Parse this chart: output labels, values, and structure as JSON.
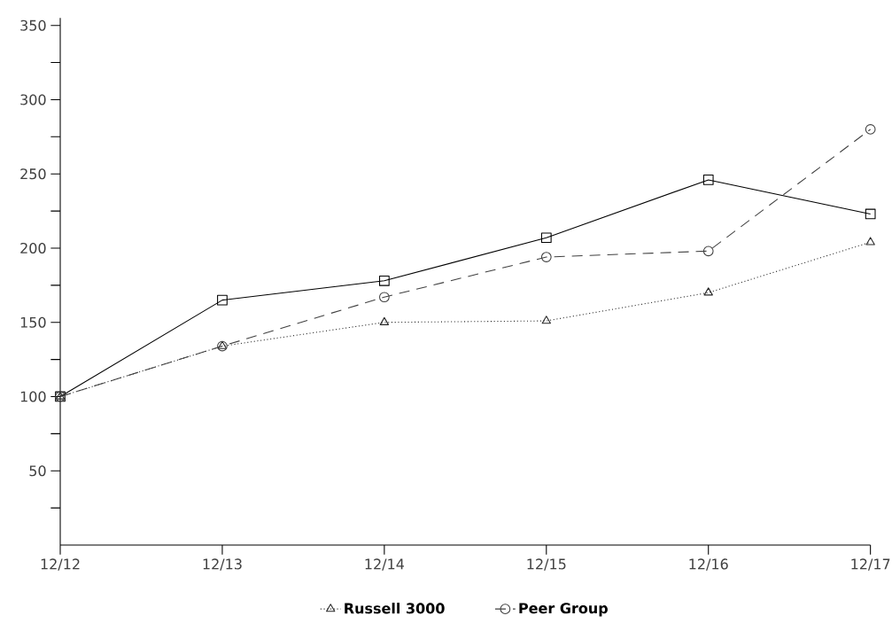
{
  "chart_data": {
    "type": "line",
    "categories": [
      "12/12",
      "12/13",
      "12/14",
      "12/15",
      "12/16",
      "12/17"
    ],
    "series": [
      {
        "color": "#000000",
        "marker": "square",
        "line_style": "solid",
        "values": [
          100,
          165,
          178,
          207,
          246,
          223
        ]
      },
      {
        "name": "Russell 3000",
        "color": "#262626",
        "marker": "triangle",
        "line_style": "dotted",
        "values": [
          100,
          134,
          150,
          151,
          170,
          204
        ]
      },
      {
        "name": "Peer Group",
        "color": "#404040",
        "marker": "circle",
        "line_style": "dashed",
        "values": [
          100,
          134,
          167,
          194,
          198,
          280
        ]
      }
    ],
    "ylim": [
      0,
      355
    ],
    "yticks": [
      {
        "value": 25,
        "label": null
      },
      50,
      {
        "value": 75,
        "label": null
      },
      100,
      {
        "value": 125,
        "label": null
      },
      150,
      {
        "value": 175,
        "label": null
      },
      200,
      {
        "value": 225,
        "label": null
      },
      250,
      {
        "value": 275,
        "label": null
      },
      300,
      {
        "value": 325,
        "label": null
      },
      350
    ],
    "grid": false,
    "legend": "bottom"
  }
}
